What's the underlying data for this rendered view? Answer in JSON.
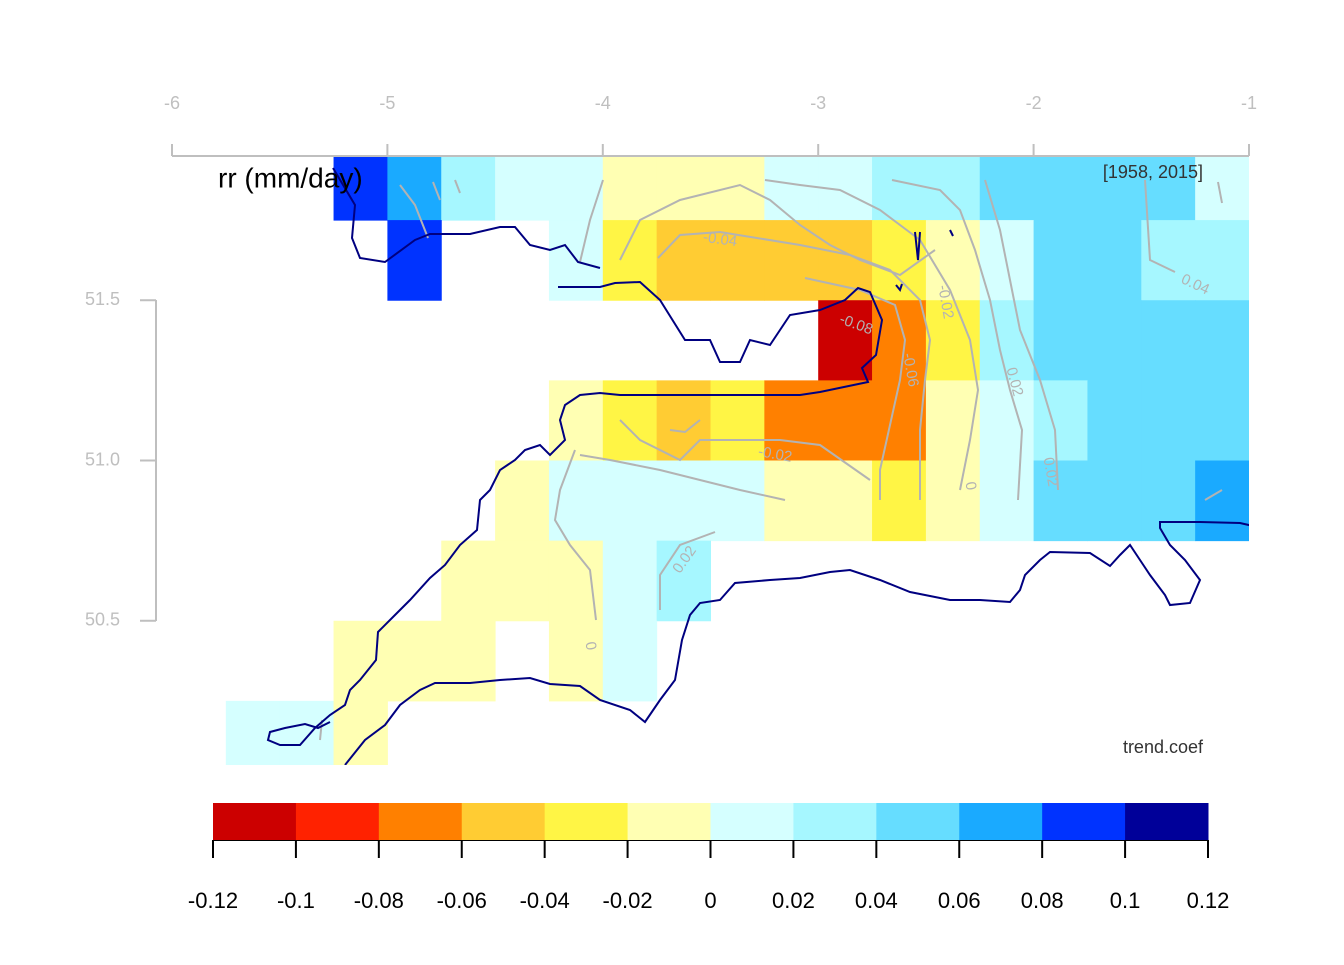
{
  "chart_data": {
    "type": "heatmap",
    "title": "rr (mm/day)",
    "period": "[1958, 2015]",
    "statistic": "trend.coef",
    "lon": [
      -5.875,
      -5.625,
      -5.375,
      -5.125,
      -4.875,
      -4.625,
      -4.375,
      -4.125,
      -3.875,
      -3.625,
      -3.375,
      -3.125,
      -2.875,
      -2.625,
      -2.375,
      -2.125,
      -1.875,
      -1.625,
      -1.375,
      -1.125
    ],
    "lat": [
      51.875,
      51.625,
      51.375,
      51.125,
      50.875,
      50.625,
      50.375,
      50.125
    ],
    "values": [
      [
        null,
        null,
        null,
        0.09,
        0.07,
        0.03,
        0.01,
        0.01,
        -0.01,
        -0.01,
        -0.01,
        0.01,
        0.01,
        0.03,
        0.03,
        0.05,
        0.05,
        0.05,
        0.05,
        0.01
      ],
      [
        null,
        null,
        null,
        null,
        0.09,
        null,
        null,
        0.01,
        -0.03,
        -0.05,
        -0.05,
        -0.05,
        -0.05,
        -0.03,
        -0.01,
        0.01,
        0.05,
        0.05,
        0.03,
        0.03
      ],
      [
        null,
        null,
        null,
        null,
        null,
        null,
        null,
        null,
        null,
        null,
        null,
        null,
        -0.11,
        -0.07,
        -0.03,
        0.03,
        0.05,
        0.05,
        0.05,
        0.05
      ],
      [
        null,
        null,
        null,
        null,
        null,
        null,
        null,
        -0.01,
        -0.03,
        -0.05,
        -0.03,
        -0.07,
        -0.07,
        -0.07,
        -0.01,
        0.01,
        0.03,
        0.05,
        0.05,
        0.05
      ],
      [
        null,
        null,
        null,
        null,
        null,
        null,
        -0.01,
        0.01,
        0.01,
        0.01,
        0.01,
        -0.01,
        -0.01,
        -0.03,
        -0.01,
        0.01,
        0.05,
        0.05,
        0.05,
        0.07
      ],
      [
        null,
        null,
        null,
        null,
        null,
        -0.01,
        -0.01,
        -0.01,
        0.01,
        0.03,
        null,
        null,
        null,
        null,
        null,
        null,
        null,
        null,
        null,
        null
      ],
      [
        null,
        null,
        null,
        -0.01,
        -0.01,
        -0.01,
        null,
        -0.01,
        0.01,
        null,
        null,
        null,
        null,
        null,
        null,
        null,
        null,
        null,
        null,
        null
      ],
      [
        null,
        0.01,
        0.01,
        -0.01,
        null,
        null,
        null,
        null,
        null,
        null,
        null,
        null,
        null,
        null,
        null,
        null,
        null,
        null,
        null,
        null
      ]
    ],
    "levels": [
      -0.12,
      -0.1,
      -0.08,
      -0.06,
      -0.04,
      -0.02,
      0,
      0.02,
      0.04,
      0.06,
      0.08,
      0.1,
      0.12
    ],
    "colors": [
      "#cc0000",
      "#ff2200",
      "#ff8000",
      "#ffcc33",
      "#fff545",
      "#ffffb3",
      "#d5ffff",
      "#a6f7ff",
      "#66ddff",
      "#1aaaff",
      "#0033ff",
      "#000099"
    ],
    "xlim": [
      -6,
      -1
    ],
    "xticks": [
      -6,
      -5,
      -4,
      -3,
      -2,
      -1
    ],
    "ylim": [
      50.05,
      51.95
    ],
    "yticks": [
      51.5,
      {
        "value": 51,
        "label": "51.0"
      },
      50.5
    ],
    "contour_labels": [
      -0.04,
      0.04,
      -0.02,
      -0.08,
      -0.06,
      0.02,
      -0.02,
      0.02,
      0,
      0.02,
      0
    ]
  }
}
